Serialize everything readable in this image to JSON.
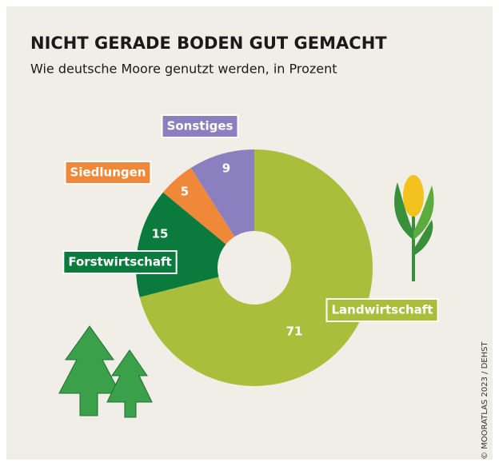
{
  "chart_data": {
    "type": "donut",
    "title": "NICHT GERADE BODEN GUT GEMACHT",
    "subtitle": "Wie deutsche Moore genutzt werden, in Prozent",
    "categories": [
      "Landwirtschaft",
      "Forstwirtschaft",
      "Siedlungen",
      "Sonstiges"
    ],
    "values": [
      71,
      15,
      5,
      9
    ],
    "colors": [
      "#a9bf3b",
      "#0b7a3d",
      "#f0883a",
      "#8b80bf"
    ],
    "credit": "© MOORATLAS 2023 / DEHST"
  }
}
